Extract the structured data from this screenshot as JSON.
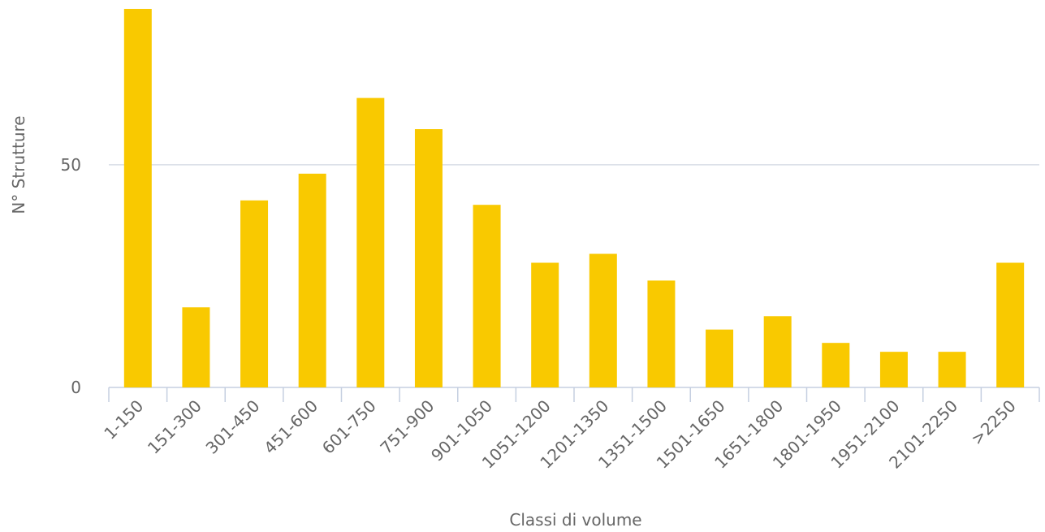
{
  "chart_data": {
    "type": "bar",
    "x_label": "Classi di volume",
    "y_label": "N° Strutture",
    "categories": [
      "1-150",
      "151-300",
      "301-450",
      "451-600",
      "601-750",
      "751-900",
      "901-1050",
      "1051-1200",
      "1201-1350",
      "1351-1500",
      "1501-1650",
      "1651-1800",
      "1801-1950",
      "1951-2100",
      "2101-2250",
      ">2250"
    ],
    "values": [
      85,
      18,
      42,
      48,
      65,
      58,
      41,
      28,
      30,
      24,
      13,
      16,
      10,
      8,
      8,
      28
    ],
    "color": "#f9c900",
    "ylim": [
      0,
      87
    ],
    "yticks": [
      0,
      50
    ],
    "grid": true
  }
}
